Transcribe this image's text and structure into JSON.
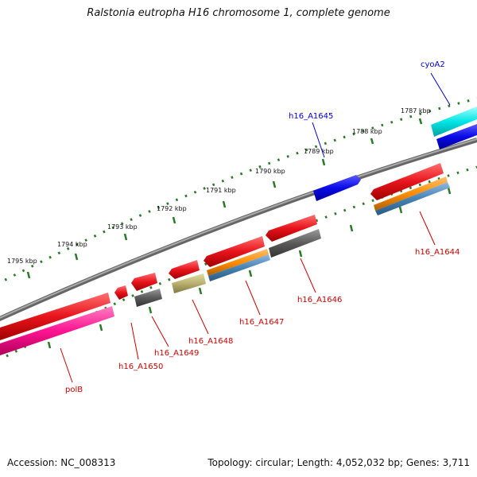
{
  "title": "Ralstonia eutropha H16 chromosome 1, complete genome",
  "footer": {
    "accession": "Accession: NC_008313",
    "summary": "Topology: circular; Length: 4,052,032 bp; Genes: 3,711"
  },
  "scale_labels": [
    "1787 kbp",
    "1788 kbp",
    "1789 kbp",
    "1790 kbp",
    "1791 kbp",
    "1792 kbp",
    "1793 kbp",
    "1794 kbp",
    "1795 kbp"
  ],
  "gene_labels": {
    "cyoA2": "cyoA2",
    "h16_A1645": "h16_A1645",
    "h16_A1644": "h16_A1644",
    "h16_A1646": "h16_A1646",
    "h16_A1647": "h16_A1647",
    "h16_A1648": "h16_A1648",
    "h16_A1649": "h16_A1649",
    "h16_A1650": "h16_A1650",
    "polB": "polB"
  },
  "colors": {
    "forward_label": "#0000cc",
    "reverse_label": "#cc0000",
    "red_gene": "#e8141c",
    "blue_gene": "#0a0ae6",
    "cyan_gene": "#00e5e5",
    "grey_gene": "#5a5a5a",
    "khaki_gene": "#b8b070",
    "orange_feature": "#ff8c00",
    "steel_feature": "#4682b4",
    "magenta_gene": "#ff1493",
    "backbone": "#888888",
    "tick": "#2a7a2a"
  }
}
